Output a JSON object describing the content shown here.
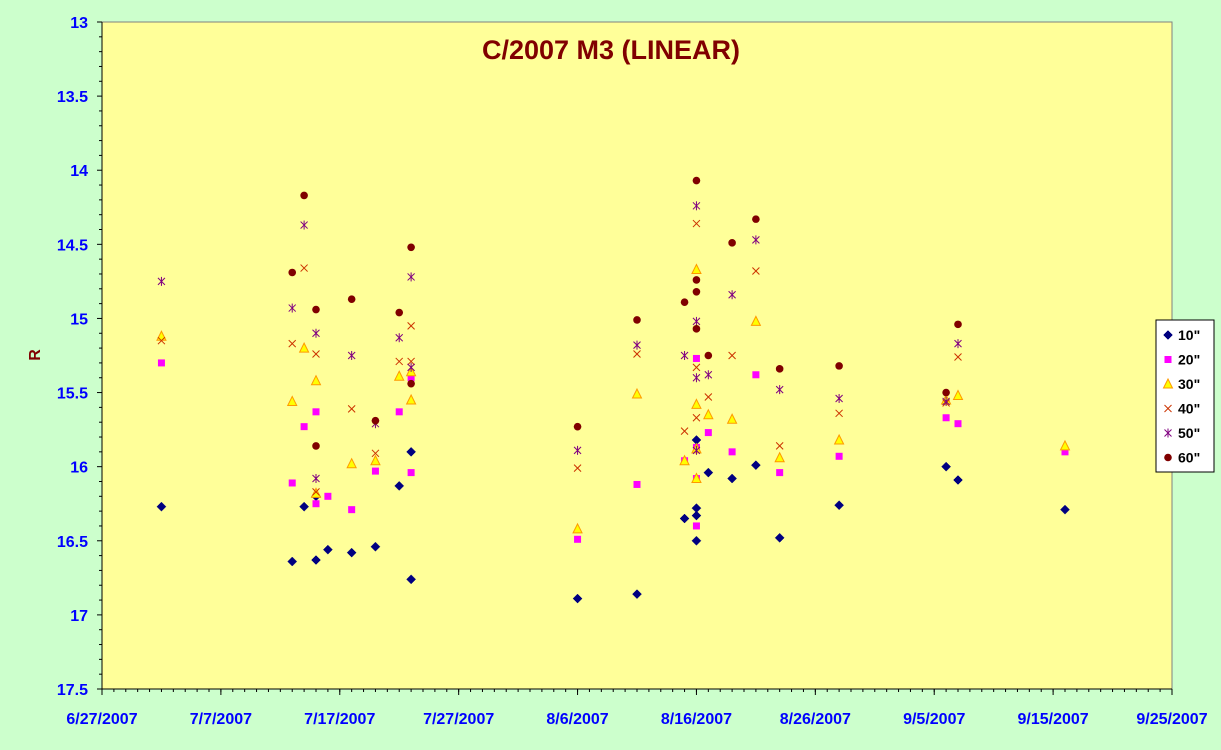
{
  "chart_data": {
    "type": "scatter",
    "title": "C/2007 M3 (LINEAR)",
    "xlabel": "",
    "ylabel": "R",
    "x_ticks": [
      "6/27/2007",
      "7/7/2007",
      "7/17/2007",
      "7/27/2007",
      "8/6/2007",
      "8/16/2007",
      "8/26/2007",
      "9/5/2007",
      "9/15/2007",
      "9/25/2007"
    ],
    "xlim": [
      "6/27/2007",
      "9/25/2007"
    ],
    "y_ticks": [
      "13",
      "13.5",
      "14",
      "14.5",
      "15",
      "15.5",
      "16",
      "16.5",
      "17",
      "17.5"
    ],
    "ylim": [
      13,
      17.5
    ],
    "y_inverted": true,
    "grid": false,
    "legend_position": "right",
    "colors": {
      "background": "#ccffcc",
      "plot_area": "#ffff99",
      "axis_text": "#0000ff",
      "title": "#800000"
    },
    "series": [
      {
        "name": "10\"",
        "marker": "diamond",
        "color": "#000080",
        "points": [
          [
            "7/2/2007",
            16.27
          ],
          [
            "7/13/2007",
            16.64
          ],
          [
            "7/14/2007",
            16.27
          ],
          [
            "7/15/2007",
            16.63
          ],
          [
            "7/15/2007",
            16.2
          ],
          [
            "7/16/2007",
            16.56
          ],
          [
            "7/18/2007",
            16.58
          ],
          [
            "7/20/2007",
            16.54
          ],
          [
            "7/22/2007",
            16.13
          ],
          [
            "7/23/2007",
            16.76
          ],
          [
            "7/23/2007",
            15.9
          ],
          [
            "8/6/2007",
            16.89
          ],
          [
            "8/11/2007",
            16.86
          ],
          [
            "8/15/2007",
            16.35
          ],
          [
            "8/16/2007",
            16.5
          ],
          [
            "8/16/2007",
            16.33
          ],
          [
            "8/16/2007",
            16.28
          ],
          [
            "8/16/2007",
            15.82
          ],
          [
            "8/17/2007",
            16.04
          ],
          [
            "8/19/2007",
            16.08
          ],
          [
            "8/21/2007",
            15.99
          ],
          [
            "8/23/2007",
            16.48
          ],
          [
            "8/28/2007",
            16.26
          ],
          [
            "9/6/2007",
            16.0
          ],
          [
            "9/7/2007",
            16.09
          ],
          [
            "9/16/2007",
            16.29
          ]
        ]
      },
      {
        "name": "20\"",
        "marker": "square",
        "color": "#ff00ff",
        "points": [
          [
            "7/2/2007",
            15.3
          ],
          [
            "7/13/2007",
            16.11
          ],
          [
            "7/14/2007",
            15.73
          ],
          [
            "7/15/2007",
            16.25
          ],
          [
            "7/15/2007",
            15.63
          ],
          [
            "7/16/2007",
            16.2
          ],
          [
            "7/18/2007",
            16.29
          ],
          [
            "7/20/2007",
            16.03
          ],
          [
            "7/22/2007",
            15.63
          ],
          [
            "7/23/2007",
            16.04
          ],
          [
            "7/23/2007",
            15.4
          ],
          [
            "8/6/2007",
            16.49
          ],
          [
            "8/11/2007",
            16.12
          ],
          [
            "8/15/2007",
            15.96
          ],
          [
            "8/16/2007",
            16.4
          ],
          [
            "8/16/2007",
            16.08
          ],
          [
            "8/16/2007",
            15.87
          ],
          [
            "8/16/2007",
            15.27
          ],
          [
            "8/17/2007",
            15.77
          ],
          [
            "8/19/2007",
            15.9
          ],
          [
            "8/21/2007",
            15.38
          ],
          [
            "8/23/2007",
            16.04
          ],
          [
            "8/28/2007",
            15.93
          ],
          [
            "9/6/2007",
            15.67
          ],
          [
            "9/7/2007",
            15.71
          ],
          [
            "9/16/2007",
            15.9
          ]
        ]
      },
      {
        "name": "30\"",
        "marker": "triangle",
        "color": "#ff9900",
        "points": [
          [
            "7/2/2007",
            15.12
          ],
          [
            "7/13/2007",
            15.56
          ],
          [
            "7/14/2007",
            15.2
          ],
          [
            "7/15/2007",
            16.18
          ],
          [
            "7/15/2007",
            15.42
          ],
          [
            "7/18/2007",
            15.98
          ],
          [
            "7/20/2007",
            15.96
          ],
          [
            "7/22/2007",
            15.39
          ],
          [
            "7/23/2007",
            15.55
          ],
          [
            "7/23/2007",
            15.36
          ],
          [
            "8/6/2007",
            16.42
          ],
          [
            "8/11/2007",
            15.51
          ],
          [
            "8/15/2007",
            15.96
          ],
          [
            "8/16/2007",
            16.08
          ],
          [
            "8/16/2007",
            15.88
          ],
          [
            "8/16/2007",
            15.58
          ],
          [
            "8/16/2007",
            14.67
          ],
          [
            "8/17/2007",
            15.65
          ],
          [
            "8/19/2007",
            15.68
          ],
          [
            "8/21/2007",
            15.02
          ],
          [
            "8/23/2007",
            15.94
          ],
          [
            "8/28/2007",
            15.82
          ],
          [
            "9/6/2007",
            15.55
          ],
          [
            "9/7/2007",
            15.52
          ],
          [
            "9/16/2007",
            15.86
          ]
        ]
      },
      {
        "name": "40\"",
        "marker": "x",
        "color": "#cc3300",
        "points": [
          [
            "7/2/2007",
            15.15
          ],
          [
            "7/13/2007",
            15.17
          ],
          [
            "7/14/2007",
            14.66
          ],
          [
            "7/15/2007",
            16.17
          ],
          [
            "7/15/2007",
            15.24
          ],
          [
            "7/18/2007",
            15.61
          ],
          [
            "7/20/2007",
            15.91
          ],
          [
            "7/22/2007",
            15.29
          ],
          [
            "7/23/2007",
            15.05
          ],
          [
            "7/23/2007",
            15.29
          ],
          [
            "8/6/2007",
            16.01
          ],
          [
            "8/11/2007",
            15.24
          ],
          [
            "8/15/2007",
            15.76
          ],
          [
            "8/16/2007",
            15.67
          ],
          [
            "8/16/2007",
            15.33
          ],
          [
            "8/16/2007",
            14.36
          ],
          [
            "8/17/2007",
            15.53
          ],
          [
            "8/19/2007",
            15.25
          ],
          [
            "8/21/2007",
            14.68
          ],
          [
            "8/23/2007",
            15.86
          ],
          [
            "8/28/2007",
            15.64
          ],
          [
            "9/6/2007",
            15.57
          ],
          [
            "9/7/2007",
            15.26
          ]
        ]
      },
      {
        "name": "50\"",
        "marker": "star",
        "color": "#800080",
        "points": [
          [
            "7/2/2007",
            14.75
          ],
          [
            "7/13/2007",
            14.93
          ],
          [
            "7/14/2007",
            14.37
          ],
          [
            "7/15/2007",
            16.08
          ],
          [
            "7/15/2007",
            15.1
          ],
          [
            "7/18/2007",
            15.25
          ],
          [
            "7/20/2007",
            15.71
          ],
          [
            "7/22/2007",
            15.13
          ],
          [
            "7/23/2007",
            14.72
          ],
          [
            "7/23/2007",
            15.33
          ],
          [
            "8/6/2007",
            15.89
          ],
          [
            "8/11/2007",
            15.18
          ],
          [
            "8/15/2007",
            15.25
          ],
          [
            "8/16/2007",
            15.89
          ],
          [
            "8/16/2007",
            15.4
          ],
          [
            "8/16/2007",
            15.02
          ],
          [
            "8/16/2007",
            14.24
          ],
          [
            "8/17/2007",
            15.38
          ],
          [
            "8/19/2007",
            14.84
          ],
          [
            "8/21/2007",
            14.47
          ],
          [
            "8/23/2007",
            15.48
          ],
          [
            "8/28/2007",
            15.54
          ],
          [
            "9/6/2007",
            15.56
          ],
          [
            "9/7/2007",
            15.17
          ]
        ]
      },
      {
        "name": "60\"",
        "marker": "circle",
        "color": "#800000",
        "points": [
          [
            "7/13/2007",
            14.69
          ],
          [
            "7/14/2007",
            14.17
          ],
          [
            "7/15/2007",
            15.86
          ],
          [
            "7/15/2007",
            14.94
          ],
          [
            "7/18/2007",
            14.87
          ],
          [
            "7/20/2007",
            15.69
          ],
          [
            "7/22/2007",
            14.96
          ],
          [
            "7/23/2007",
            14.52
          ],
          [
            "7/23/2007",
            15.44
          ],
          [
            "8/6/2007",
            15.73
          ],
          [
            "8/11/2007",
            15.01
          ],
          [
            "8/15/2007",
            14.89
          ],
          [
            "8/16/2007",
            15.07
          ],
          [
            "8/16/2007",
            14.82
          ],
          [
            "8/16/2007",
            14.74
          ],
          [
            "8/16/2007",
            14.07
          ],
          [
            "8/17/2007",
            15.25
          ],
          [
            "8/19/2007",
            14.49
          ],
          [
            "8/21/2007",
            14.33
          ],
          [
            "8/23/2007",
            15.34
          ],
          [
            "8/28/2007",
            15.32
          ],
          [
            "9/6/2007",
            15.5
          ],
          [
            "9/7/2007",
            15.04
          ]
        ]
      }
    ]
  }
}
